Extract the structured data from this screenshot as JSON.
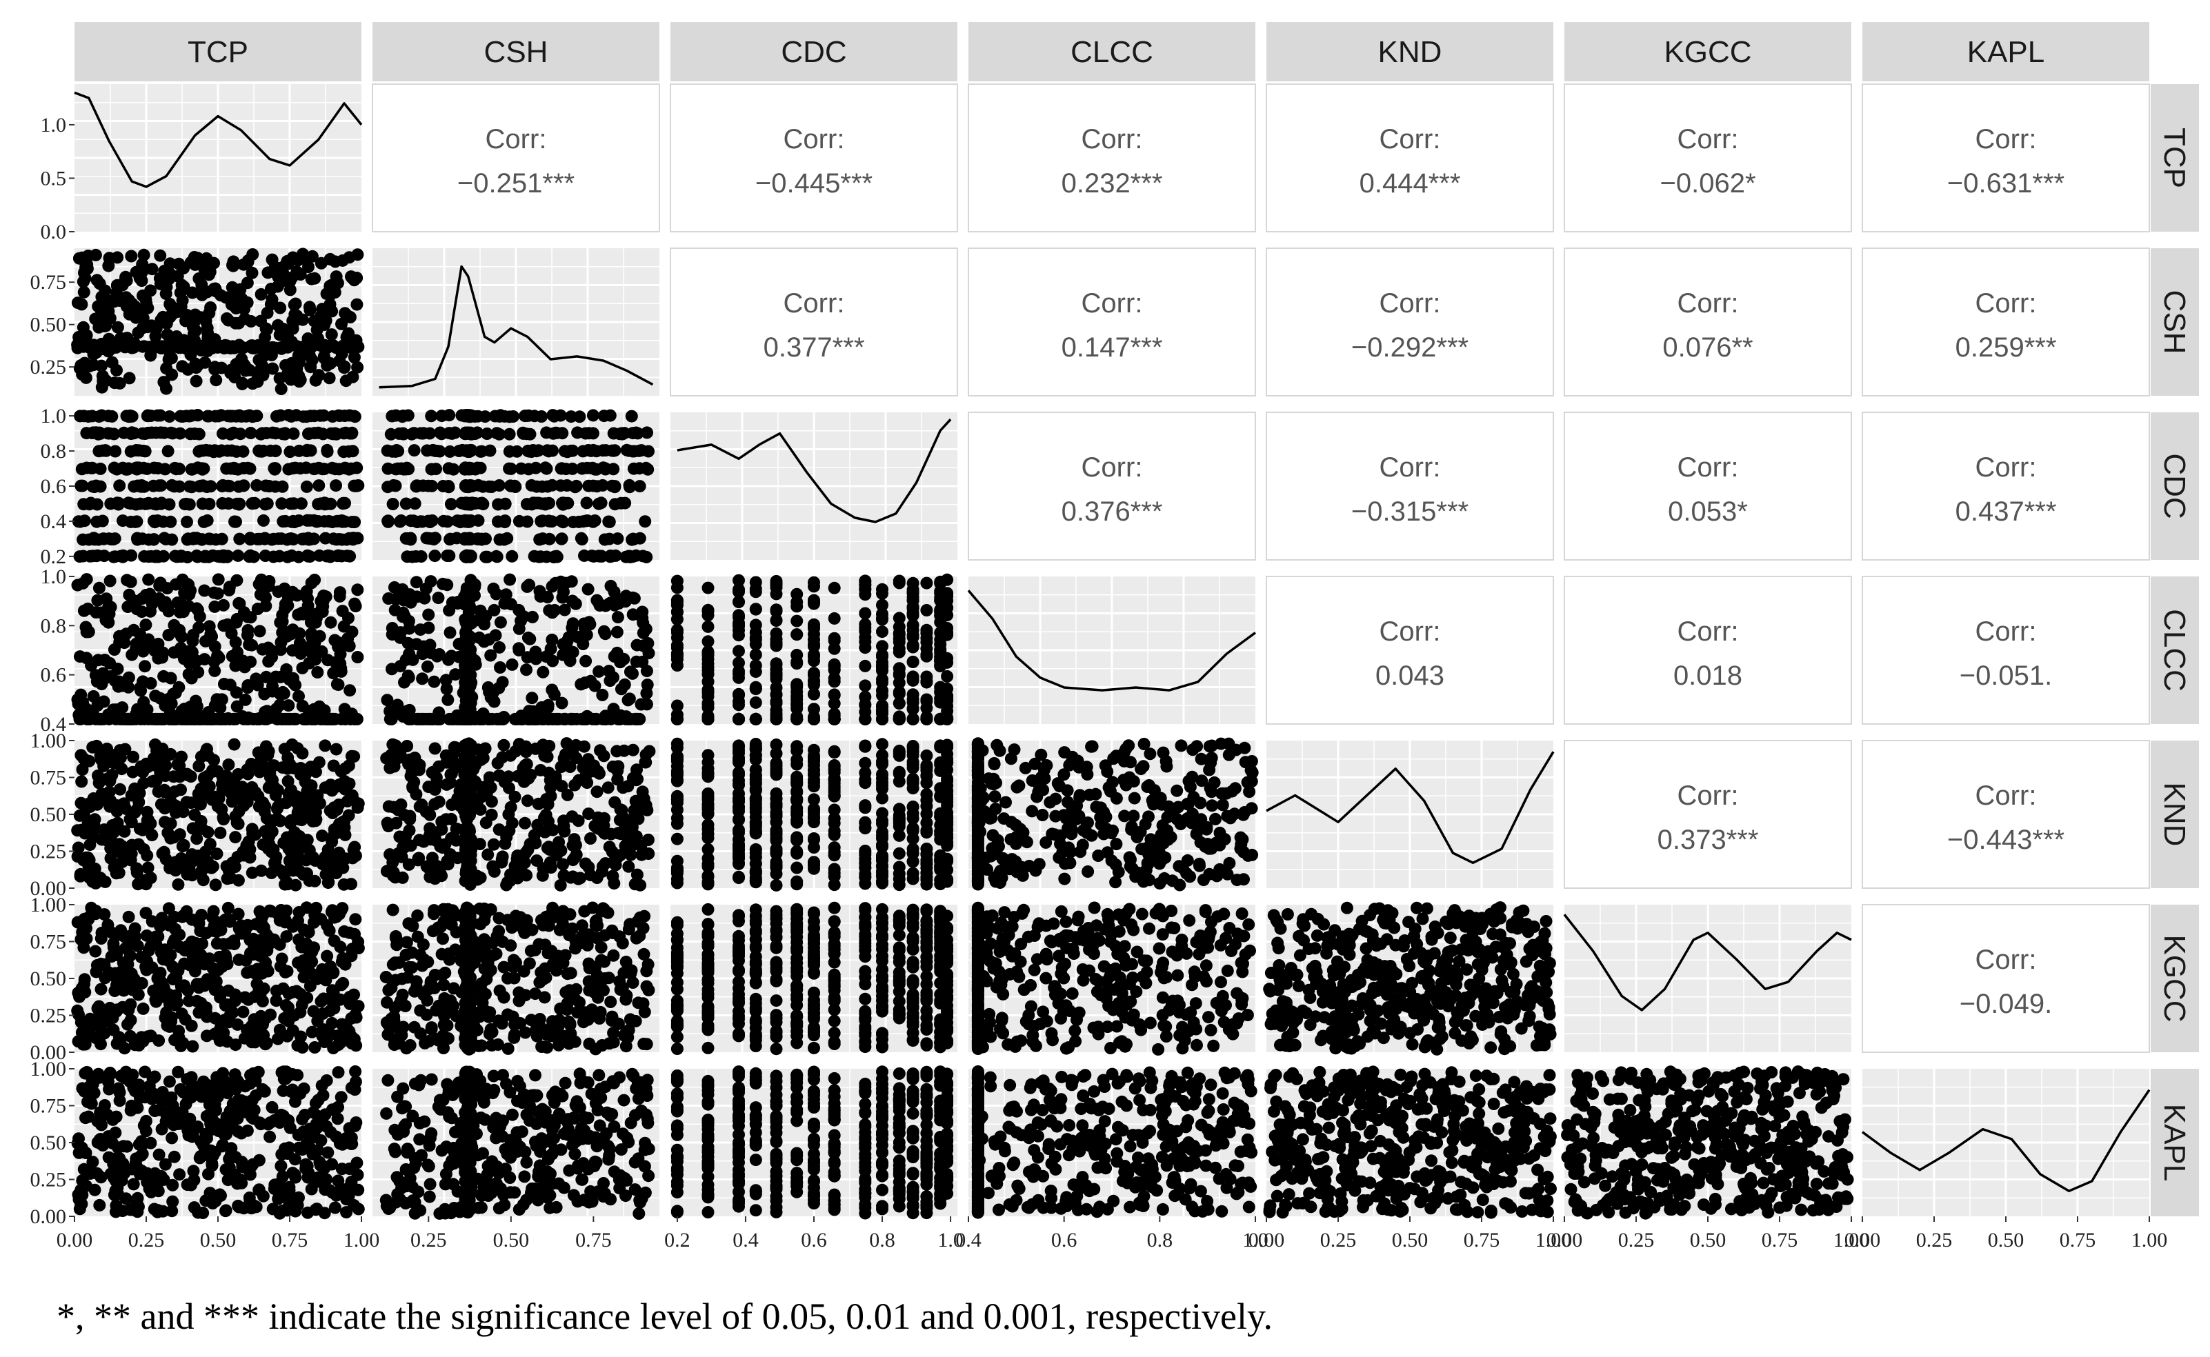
{
  "chart_data": {
    "type": "scatter-matrix",
    "variables": [
      "TCP",
      "CSH",
      "CDC",
      "CLCC",
      "KND",
      "KGCC",
      "KAPL"
    ],
    "corr_label": "Corr:",
    "correlations": {
      "CSH-TCP": "−0.251***",
      "CDC-TCP": "−0.445***",
      "CLCC-TCP": "0.232***",
      "KND-TCP": "0.444***",
      "KGCC-TCP": "−0.062*",
      "KAPL-TCP": "−0.631***",
      "CDC-CSH": "0.377***",
      "CLCC-CSH": "0.147***",
      "KND-CSH": "−0.292***",
      "KGCC-CSH": "0.076**",
      "KAPL-CSH": "0.259***",
      "CLCC-CDC": "0.376***",
      "KND-CDC": "−0.315***",
      "KGCC-CDC": "0.053*",
      "KAPL-CDC": "0.437***",
      "KND-CLCC": "0.043",
      "KGCC-CLCC": "0.018",
      "KAPL-CLCC": "−0.051.",
      "KGCC-KND": "0.373***",
      "KAPL-KND": "−0.443***",
      "KAPL-KGCC": "−0.049."
    },
    "x_axis": {
      "TCP": {
        "range": [
          0,
          1
        ],
        "ticks": [
          "0.00",
          "0.25",
          "0.50",
          "0.75",
          "1.00"
        ]
      },
      "CSH": {
        "range": [
          0.08,
          0.95
        ],
        "ticks": [
          "0.25",
          "0.50",
          "0.75"
        ]
      },
      "CDC": {
        "range": [
          0.18,
          1.02
        ],
        "ticks": [
          "0.2",
          "0.4",
          "0.6",
          "0.8",
          "1.0"
        ]
      },
      "CLCC": {
        "range": [
          0.4,
          1.0
        ],
        "ticks": [
          "0.4",
          "0.6",
          "0.8",
          "1.0"
        ]
      },
      "KND": {
        "range": [
          0,
          1
        ],
        "ticks": [
          "0.00",
          "0.25",
          "0.50",
          "0.75",
          "1.00"
        ]
      },
      "KGCC": {
        "range": [
          0,
          1
        ],
        "ticks": [
          "0.00",
          "0.25",
          "0.50",
          "0.75",
          "1.00"
        ]
      },
      "KAPL": {
        "range": [
          0,
          1
        ],
        "ticks": [
          "0.00",
          "0.25",
          "0.50",
          "0.75",
          "1.00"
        ]
      }
    },
    "y_axis": {
      "TCP": {
        "range": [
          0,
          1.38
        ],
        "ticks": [
          "0.0",
          "0.5",
          "1.0"
        ]
      },
      "CSH": {
        "range": [
          0.08,
          0.95
        ],
        "ticks": [
          "0.25",
          "0.50",
          "0.75"
        ]
      },
      "CDC": {
        "range": [
          0.18,
          1.02
        ],
        "ticks": [
          "0.2",
          "0.4",
          "0.6",
          "0.8",
          "1.0"
        ]
      },
      "CLCC": {
        "range": [
          0.4,
          1.0
        ],
        "ticks": [
          "0.4",
          "0.6",
          "0.8",
          "1.0"
        ]
      },
      "KND": {
        "range": [
          0,
          1
        ],
        "ticks": [
          "0.00",
          "0.25",
          "0.50",
          "0.75",
          "1.00"
        ]
      },
      "KGCC": {
        "range": [
          0,
          1
        ],
        "ticks": [
          "0.00",
          "0.25",
          "0.50",
          "0.75",
          "1.00"
        ]
      },
      "KAPL": {
        "range": [
          0,
          1
        ],
        "ticks": [
          "0.00",
          "0.25",
          "0.50",
          "0.75",
          "1.00"
        ]
      }
    },
    "density_curves": {
      "TCP": [
        [
          0.0,
          1.3
        ],
        [
          0.05,
          1.25
        ],
        [
          0.12,
          0.85
        ],
        [
          0.2,
          0.47
        ],
        [
          0.25,
          0.42
        ],
        [
          0.32,
          0.52
        ],
        [
          0.42,
          0.9
        ],
        [
          0.5,
          1.08
        ],
        [
          0.58,
          0.95
        ],
        [
          0.68,
          0.68
        ],
        [
          0.75,
          0.62
        ],
        [
          0.85,
          0.86
        ],
        [
          0.94,
          1.2
        ],
        [
          1.0,
          1.0
        ]
      ],
      "CSH": [
        [
          0.1,
          0.06
        ],
        [
          0.2,
          0.07
        ],
        [
          0.27,
          0.12
        ],
        [
          0.31,
          0.35
        ],
        [
          0.35,
          0.92
        ],
        [
          0.37,
          0.85
        ],
        [
          0.42,
          0.42
        ],
        [
          0.45,
          0.38
        ],
        [
          0.5,
          0.48
        ],
        [
          0.55,
          0.42
        ],
        [
          0.62,
          0.26
        ],
        [
          0.7,
          0.28
        ],
        [
          0.78,
          0.25
        ],
        [
          0.85,
          0.18
        ],
        [
          0.93,
          0.08
        ]
      ],
      "CDC": [
        [
          0.2,
          0.78
        ],
        [
          0.3,
          0.82
        ],
        [
          0.38,
          0.72
        ],
        [
          0.44,
          0.82
        ],
        [
          0.5,
          0.9
        ],
        [
          0.58,
          0.62
        ],
        [
          0.65,
          0.4
        ],
        [
          0.72,
          0.3
        ],
        [
          0.78,
          0.27
        ],
        [
          0.84,
          0.33
        ],
        [
          0.9,
          0.55
        ],
        [
          0.97,
          0.92
        ],
        [
          1.0,
          1.0
        ]
      ],
      "CLCC": [
        [
          0.4,
          0.95
        ],
        [
          0.45,
          0.75
        ],
        [
          0.5,
          0.48
        ],
        [
          0.55,
          0.33
        ],
        [
          0.6,
          0.26
        ],
        [
          0.68,
          0.24
        ],
        [
          0.75,
          0.26
        ],
        [
          0.82,
          0.24
        ],
        [
          0.88,
          0.3
        ],
        [
          0.94,
          0.5
        ],
        [
          1.0,
          0.65
        ]
      ],
      "KND": [
        [
          0.0,
          0.55
        ],
        [
          0.1,
          0.66
        ],
        [
          0.25,
          0.47
        ],
        [
          0.35,
          0.66
        ],
        [
          0.45,
          0.85
        ],
        [
          0.55,
          0.62
        ],
        [
          0.65,
          0.25
        ],
        [
          0.72,
          0.18
        ],
        [
          0.82,
          0.28
        ],
        [
          0.92,
          0.7
        ],
        [
          1.0,
          0.97
        ]
      ],
      "KGCC": [
        [
          0.0,
          0.98
        ],
        [
          0.1,
          0.72
        ],
        [
          0.2,
          0.4
        ],
        [
          0.27,
          0.3
        ],
        [
          0.35,
          0.45
        ],
        [
          0.45,
          0.8
        ],
        [
          0.5,
          0.85
        ],
        [
          0.6,
          0.66
        ],
        [
          0.7,
          0.45
        ],
        [
          0.78,
          0.5
        ],
        [
          0.88,
          0.72
        ],
        [
          0.95,
          0.85
        ],
        [
          1.0,
          0.8
        ]
      ],
      "KAPL": [
        [
          0.0,
          0.6
        ],
        [
          0.1,
          0.45
        ],
        [
          0.2,
          0.33
        ],
        [
          0.3,
          0.45
        ],
        [
          0.42,
          0.62
        ],
        [
          0.52,
          0.55
        ],
        [
          0.62,
          0.3
        ],
        [
          0.72,
          0.18
        ],
        [
          0.8,
          0.25
        ],
        [
          0.9,
          0.6
        ],
        [
          1.0,
          0.9
        ]
      ]
    },
    "footnote": "*,  ** and *** indicate the significance level of 0.05, 0.01 and 0.001, respectively."
  }
}
